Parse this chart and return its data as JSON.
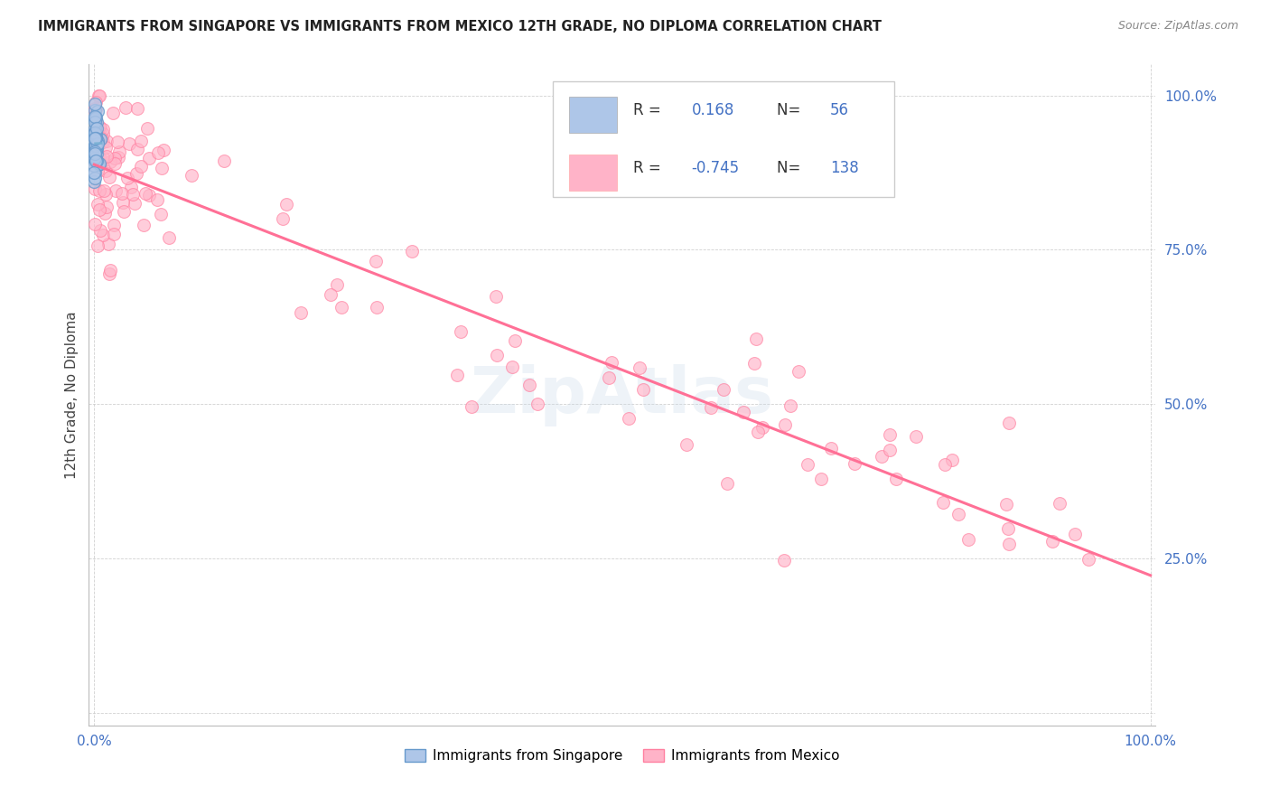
{
  "title": "IMMIGRANTS FROM SINGAPORE VS IMMIGRANTS FROM MEXICO 12TH GRADE, NO DIPLOMA CORRELATION CHART",
  "source": "Source: ZipAtlas.com",
  "ylabel": "12th Grade, No Diploma",
  "singapore_R": 0.168,
  "singapore_N": 56,
  "mexico_R": -0.745,
  "mexico_N": 138,
  "singapore_color": "#aec6e8",
  "singapore_edge_color": "#6699cc",
  "singapore_line_color": "#7ab0d4",
  "mexico_color": "#ffb3c8",
  "mexico_edge_color": "#ff80a0",
  "mexico_line_color": "#ff7096",
  "legend_text_color": "#4472c4",
  "tick_color": "#4472c4",
  "grid_color": "#cccccc",
  "title_color": "#222222",
  "source_color": "#888888",
  "watermark_color": "#c8d8e8",
  "ylabel_color": "#444444"
}
